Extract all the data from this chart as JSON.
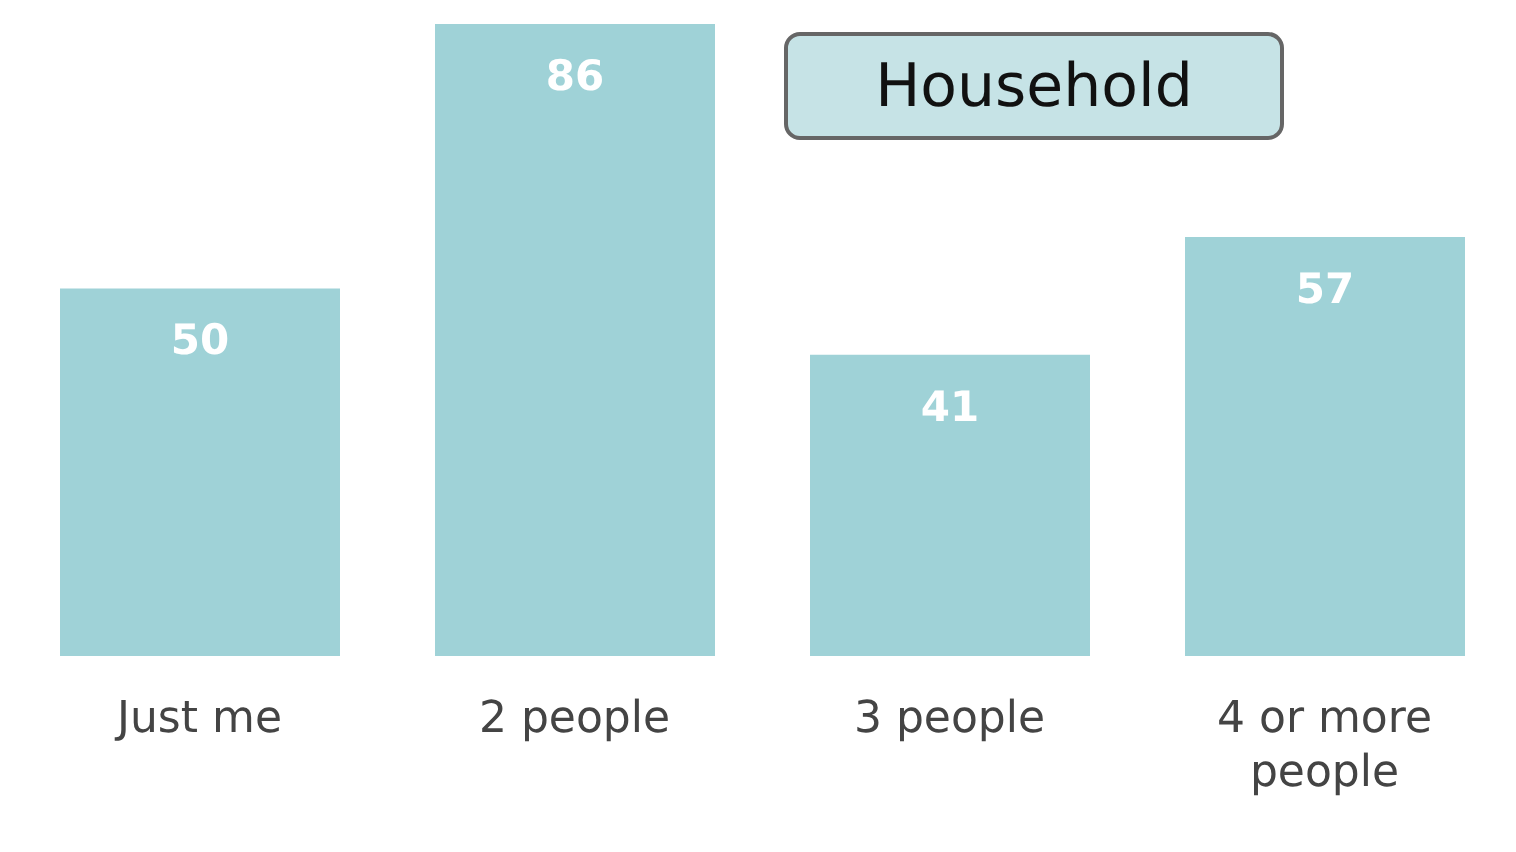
{
  "chart_data": {
    "type": "bar",
    "title": "Household",
    "categories": [
      "Just me",
      "2 people",
      "3 people",
      "4 or more people"
    ],
    "values": [
      50,
      86,
      41,
      57
    ],
    "color": "#9fd2d7",
    "data_labels": true
  }
}
